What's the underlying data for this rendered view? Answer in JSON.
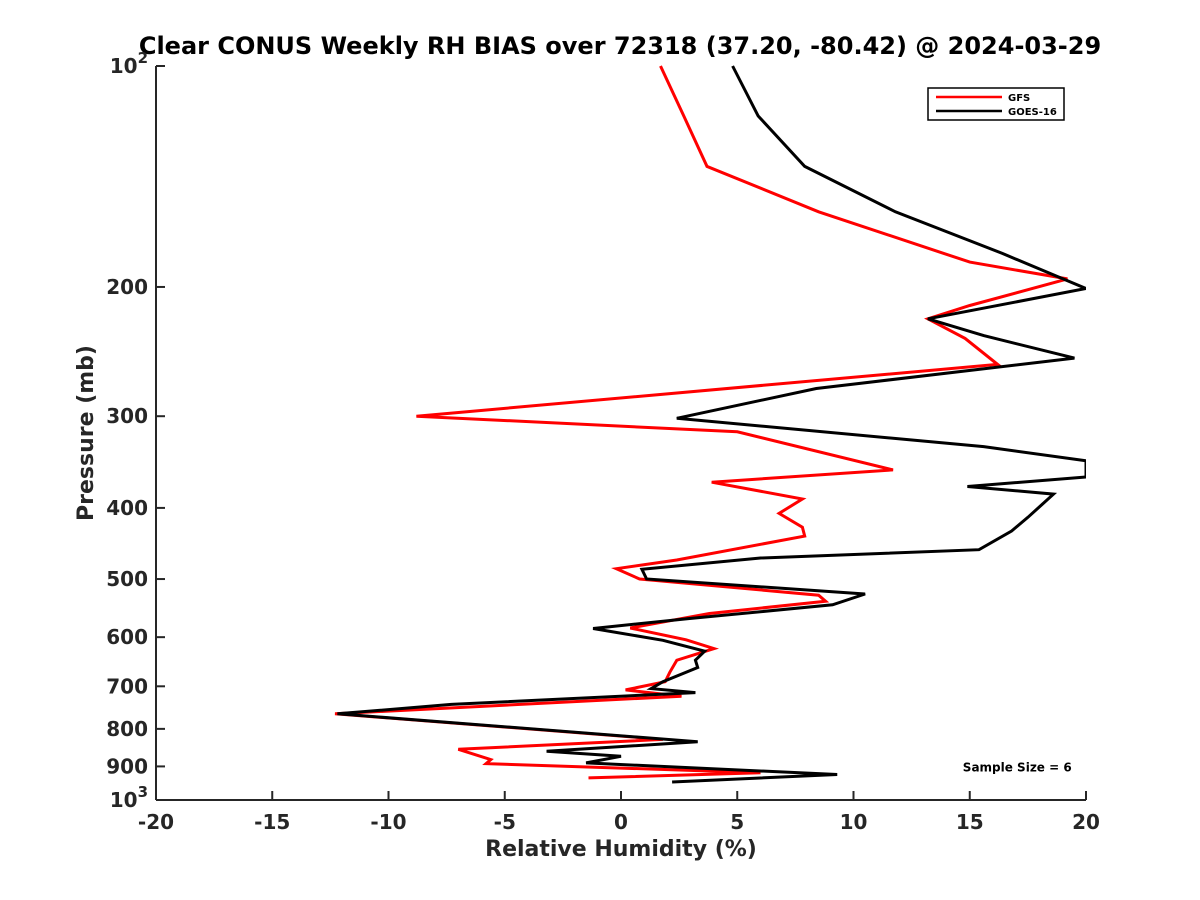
{
  "chart_data": {
    "type": "line",
    "title": "Clear CONUS Weekly RH BIAS over 72318 (37.20, -80.42) @ 2024-03-29",
    "xlabel": "Relative Humidity (%)",
    "ylabel": "Pressure (mb)",
    "xlim": [
      -20,
      20
    ],
    "ylim": [
      100,
      1000
    ],
    "y_scale": "log",
    "y_reversed": true,
    "x_ticks": [
      -20,
      -15,
      -10,
      -5,
      0,
      5,
      10,
      15,
      20
    ],
    "x_tick_labels": [
      "-20",
      "-15",
      "-10",
      "-5",
      "0",
      "5",
      "10",
      "15",
      "20"
    ],
    "y_ticks": [
      100,
      200,
      300,
      400,
      500,
      600,
      700,
      800,
      900,
      1000
    ],
    "y_tick_labels": [
      {
        "base": "10",
        "exp": "2"
      },
      {
        "base": "200",
        "exp": ""
      },
      {
        "base": "300",
        "exp": ""
      },
      {
        "base": "400",
        "exp": ""
      },
      {
        "base": "500",
        "exp": ""
      },
      {
        "base": "600",
        "exp": ""
      },
      {
        "base": "700",
        "exp": ""
      },
      {
        "base": "800",
        "exp": ""
      },
      {
        "base": "900",
        "exp": ""
      },
      {
        "base": "10",
        "exp": "3"
      }
    ],
    "grid": false,
    "legend_position": "top-right",
    "series": [
      {
        "name": "GFS",
        "color": "#ff0000",
        "points": [
          [
            1.7,
            100
          ],
          [
            2.7,
            117
          ],
          [
            3.7,
            137
          ],
          [
            8.5,
            158
          ],
          [
            15,
            185
          ],
          [
            19.2,
            195
          ],
          [
            15,
            212
          ],
          [
            13.2,
            221
          ],
          [
            14.8,
            235
          ],
          [
            16.2,
            255
          ],
          [
            -8.8,
            300
          ],
          [
            5,
            315
          ],
          [
            11.7,
            355
          ],
          [
            3.9,
            369
          ],
          [
            7.8,
            389
          ],
          [
            6.8,
            407
          ],
          [
            7.8,
            425
          ],
          [
            7.9,
            437
          ],
          [
            2.4,
            471
          ],
          [
            -0.2,
            484
          ],
          [
            0.8,
            500
          ],
          [
            8.5,
            526
          ],
          [
            8.8,
            536
          ],
          [
            3.8,
            557
          ],
          [
            0.4,
            583
          ],
          [
            2.8,
            605
          ],
          [
            4,
            622
          ],
          [
            2.4,
            645
          ],
          [
            2.1,
            670
          ],
          [
            1.9,
            690
          ],
          [
            0.2,
            708
          ],
          [
            2.6,
            722
          ],
          [
            -12.3,
            763
          ],
          [
            1.8,
            827
          ],
          [
            -7,
            853
          ],
          [
            -5.6,
            881
          ],
          [
            -5.8,
            892
          ],
          [
            6,
            918
          ],
          [
            -1.4,
            933
          ]
        ]
      },
      {
        "name": "GOES-16",
        "color": "#000000",
        "points": [
          [
            4.8,
            100
          ],
          [
            5.9,
            117
          ],
          [
            7.9,
            137
          ],
          [
            11.8,
            158
          ],
          [
            16.4,
            180
          ],
          [
            20,
            201
          ],
          [
            13.2,
            221
          ],
          [
            15.6,
            233
          ],
          [
            19.5,
            250
          ],
          [
            8.4,
            275
          ],
          [
            2.4,
            302
          ],
          [
            15.6,
            330
          ],
          [
            20,
            345
          ],
          [
            20,
            363
          ],
          [
            14.9,
            374
          ],
          [
            18.6,
            383
          ],
          [
            17.5,
            412
          ],
          [
            16.8,
            430
          ],
          [
            15.4,
            456
          ],
          [
            6,
            468
          ],
          [
            0.9,
            485
          ],
          [
            1.1,
            500
          ],
          [
            10.5,
            524
          ],
          [
            9.1,
            542
          ],
          [
            2.9,
            566
          ],
          [
            -1.2,
            584
          ],
          [
            1.8,
            606
          ],
          [
            3.6,
            627
          ],
          [
            3.2,
            645
          ],
          [
            3.3,
            660
          ],
          [
            1.8,
            690
          ],
          [
            1.3,
            705
          ],
          [
            3.2,
            714
          ],
          [
            -7.3,
            741
          ],
          [
            -12.2,
            763
          ],
          [
            3.3,
            833
          ],
          [
            -3.2,
            858
          ],
          [
            0,
            872
          ],
          [
            -1.5,
            890
          ],
          [
            9.3,
            923
          ],
          [
            2.2,
            945
          ]
        ]
      }
    ],
    "annotations": [
      {
        "text": "Sample Size = 6",
        "x": 14.7,
        "y": 900
      }
    ]
  }
}
